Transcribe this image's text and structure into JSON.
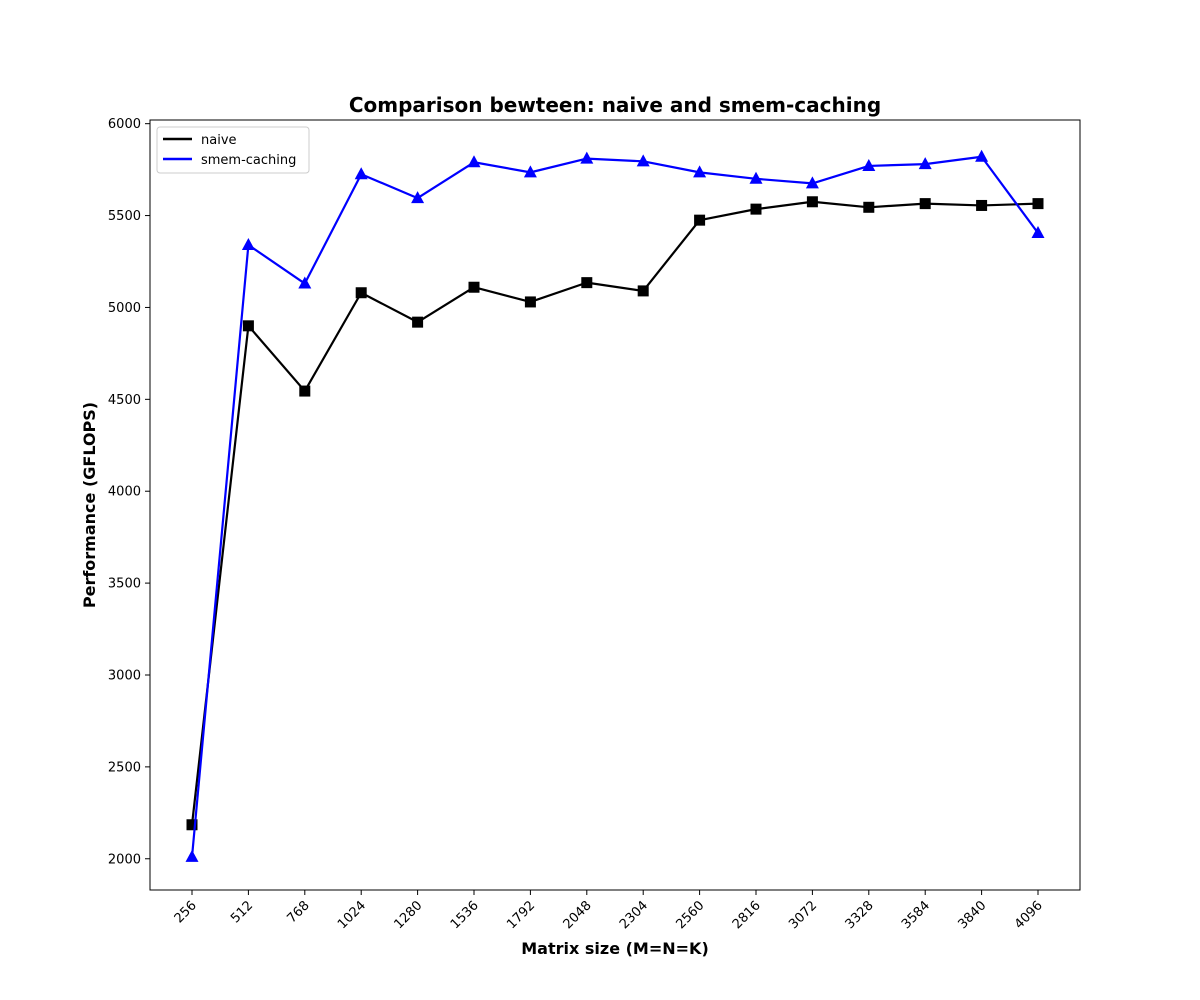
{
  "chart_data": {
    "type": "line",
    "title": "Comparison bewteen: naive and smem-caching",
    "xlabel": "Matrix size (M=N=K)",
    "ylabel": "Performance (GFLOPS)",
    "categories": [
      "256",
      "512",
      "768",
      "1024",
      "1280",
      "1536",
      "1792",
      "2048",
      "2304",
      "2560",
      "2816",
      "3072",
      "3328",
      "3584",
      "3840",
      "4096"
    ],
    "ylim": [
      1830,
      6020
    ],
    "yticks": [
      2000,
      2500,
      3000,
      3500,
      4000,
      4500,
      5000,
      5500,
      6000
    ],
    "grid": false,
    "legend_position": "upper-left",
    "series": [
      {
        "name": "naive",
        "color": "#000000",
        "marker": "square",
        "values": [
          2185,
          4900,
          4545,
          5080,
          4920,
          5110,
          5030,
          5135,
          5090,
          5475,
          5535,
          5575,
          5545,
          5565,
          5555,
          5565
        ]
      },
      {
        "name": "smem-caching",
        "color": "#0000ff",
        "marker": "triangle",
        "values": [
          2010,
          5340,
          5130,
          5725,
          5595,
          5790,
          5735,
          5810,
          5795,
          5735,
          5700,
          5675,
          5770,
          5780,
          5820,
          5405
        ]
      }
    ]
  }
}
